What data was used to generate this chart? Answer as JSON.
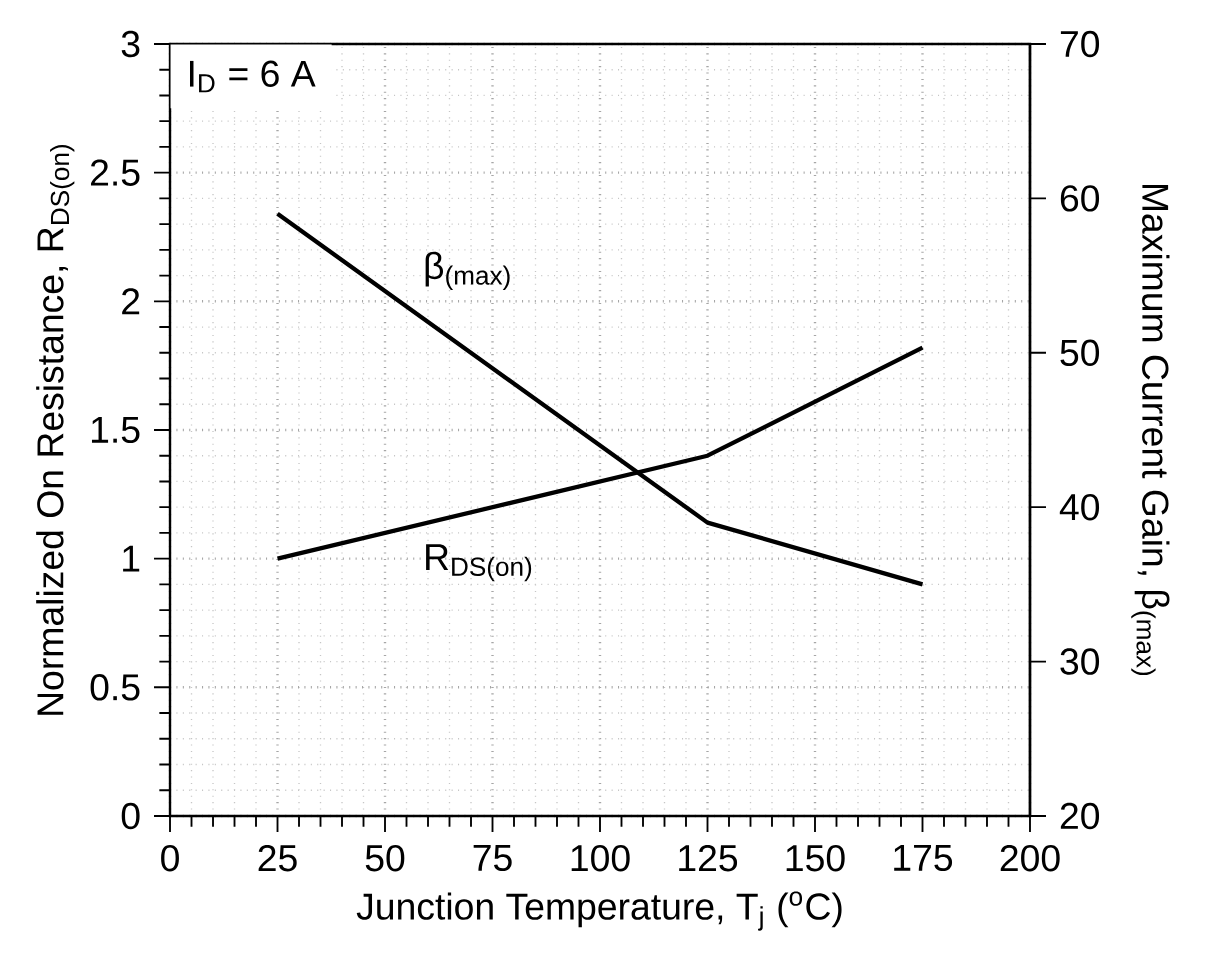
{
  "chart_data": {
    "type": "line",
    "xlabel": "Junction Temperature, T$_{j}$ ($^{o}$C)",
    "ylabel": "Normalized On Resistance, R$_{DS(on)}$",
    "y2label": "Maximum Current Gain, β$_{(max)}$",
    "x": [
      25,
      125,
      175
    ],
    "series": [
      {
        "name": "R$_{DS(on)}$",
        "color": "#000000",
        "values": [
          1.0,
          1.4,
          1.82
        ]
      },
      {
        "name": "β$_{(max)}$",
        "color": "#000000",
        "values": [
          59,
          39,
          35
        ],
        "axis": "y2"
      }
    ],
    "xlim": [
      0,
      200
    ],
    "xticks": [
      0,
      25,
      50,
      75,
      100,
      125,
      150,
      175,
      200
    ],
    "ylim": [
      0,
      3
    ],
    "yticks": [
      0,
      0.5,
      1,
      1.5,
      2,
      2.5,
      3
    ],
    "y2lim": [
      20,
      70
    ],
    "y2ticks": [
      20,
      30,
      40,
      50,
      60,
      70
    ],
    "annotations": [
      "I$_{D}$ = 6 A"
    ],
    "grid": true,
    "marker": "none",
    "line_style": "solid"
  }
}
